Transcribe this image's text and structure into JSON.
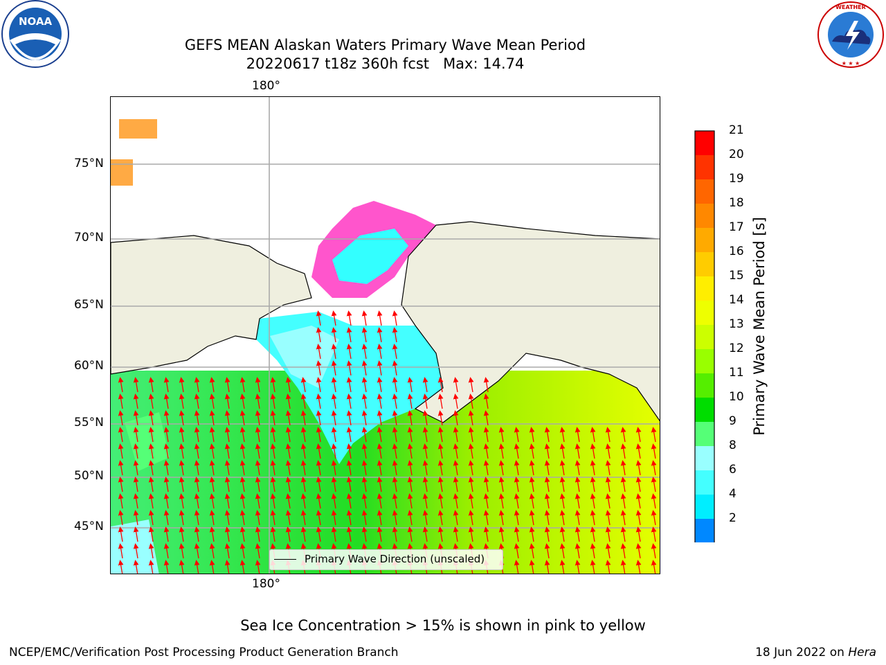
{
  "title": {
    "line1": "GEFS MEAN Alaskan Waters Primary Wave Mean Period",
    "line2": "20220617 t18z 360h fcst   Max: 14.74"
  },
  "axes": {
    "lon_label_top": "180°",
    "lon_label_bottom": "180°",
    "lat_labels": [
      "75°N",
      "70°N",
      "65°N",
      "60°N",
      "55°N",
      "50°N",
      "45°N"
    ]
  },
  "legend": {
    "label": "Primary Wave Direction (unscaled)"
  },
  "colorbar": {
    "title": "Primary Wave Mean Period [s]",
    "ticks": [
      "21",
      "20",
      "19",
      "18",
      "17",
      "16",
      "15",
      "14",
      "13",
      "12",
      "11",
      "10",
      "9",
      "8",
      "6",
      "4",
      "2"
    ],
    "colors": [
      "#ff0000",
      "#ff3300",
      "#ff6600",
      "#ff8800",
      "#ffaa00",
      "#ffcc00",
      "#ffee00",
      "#eeff00",
      "#ccff00",
      "#99ff00",
      "#55ee00",
      "#00dd00",
      "#55ff77",
      "#99ffff",
      "#44ffff",
      "#00eeff",
      "#0088ff"
    ],
    "under_color": "#1111ff"
  },
  "footer": {
    "note": "Sea Ice Concentration > 15% is shown in pink to yellow",
    "left": "NCEP/EMC/Verification Post Processing Product Generation Branch",
    "right_prefix": "18 Jun 2022 on ",
    "right_host": "Hera"
  },
  "logos": {
    "left": "NOAA",
    "right": "NATIONAL WEATHER SERVICE"
  }
}
